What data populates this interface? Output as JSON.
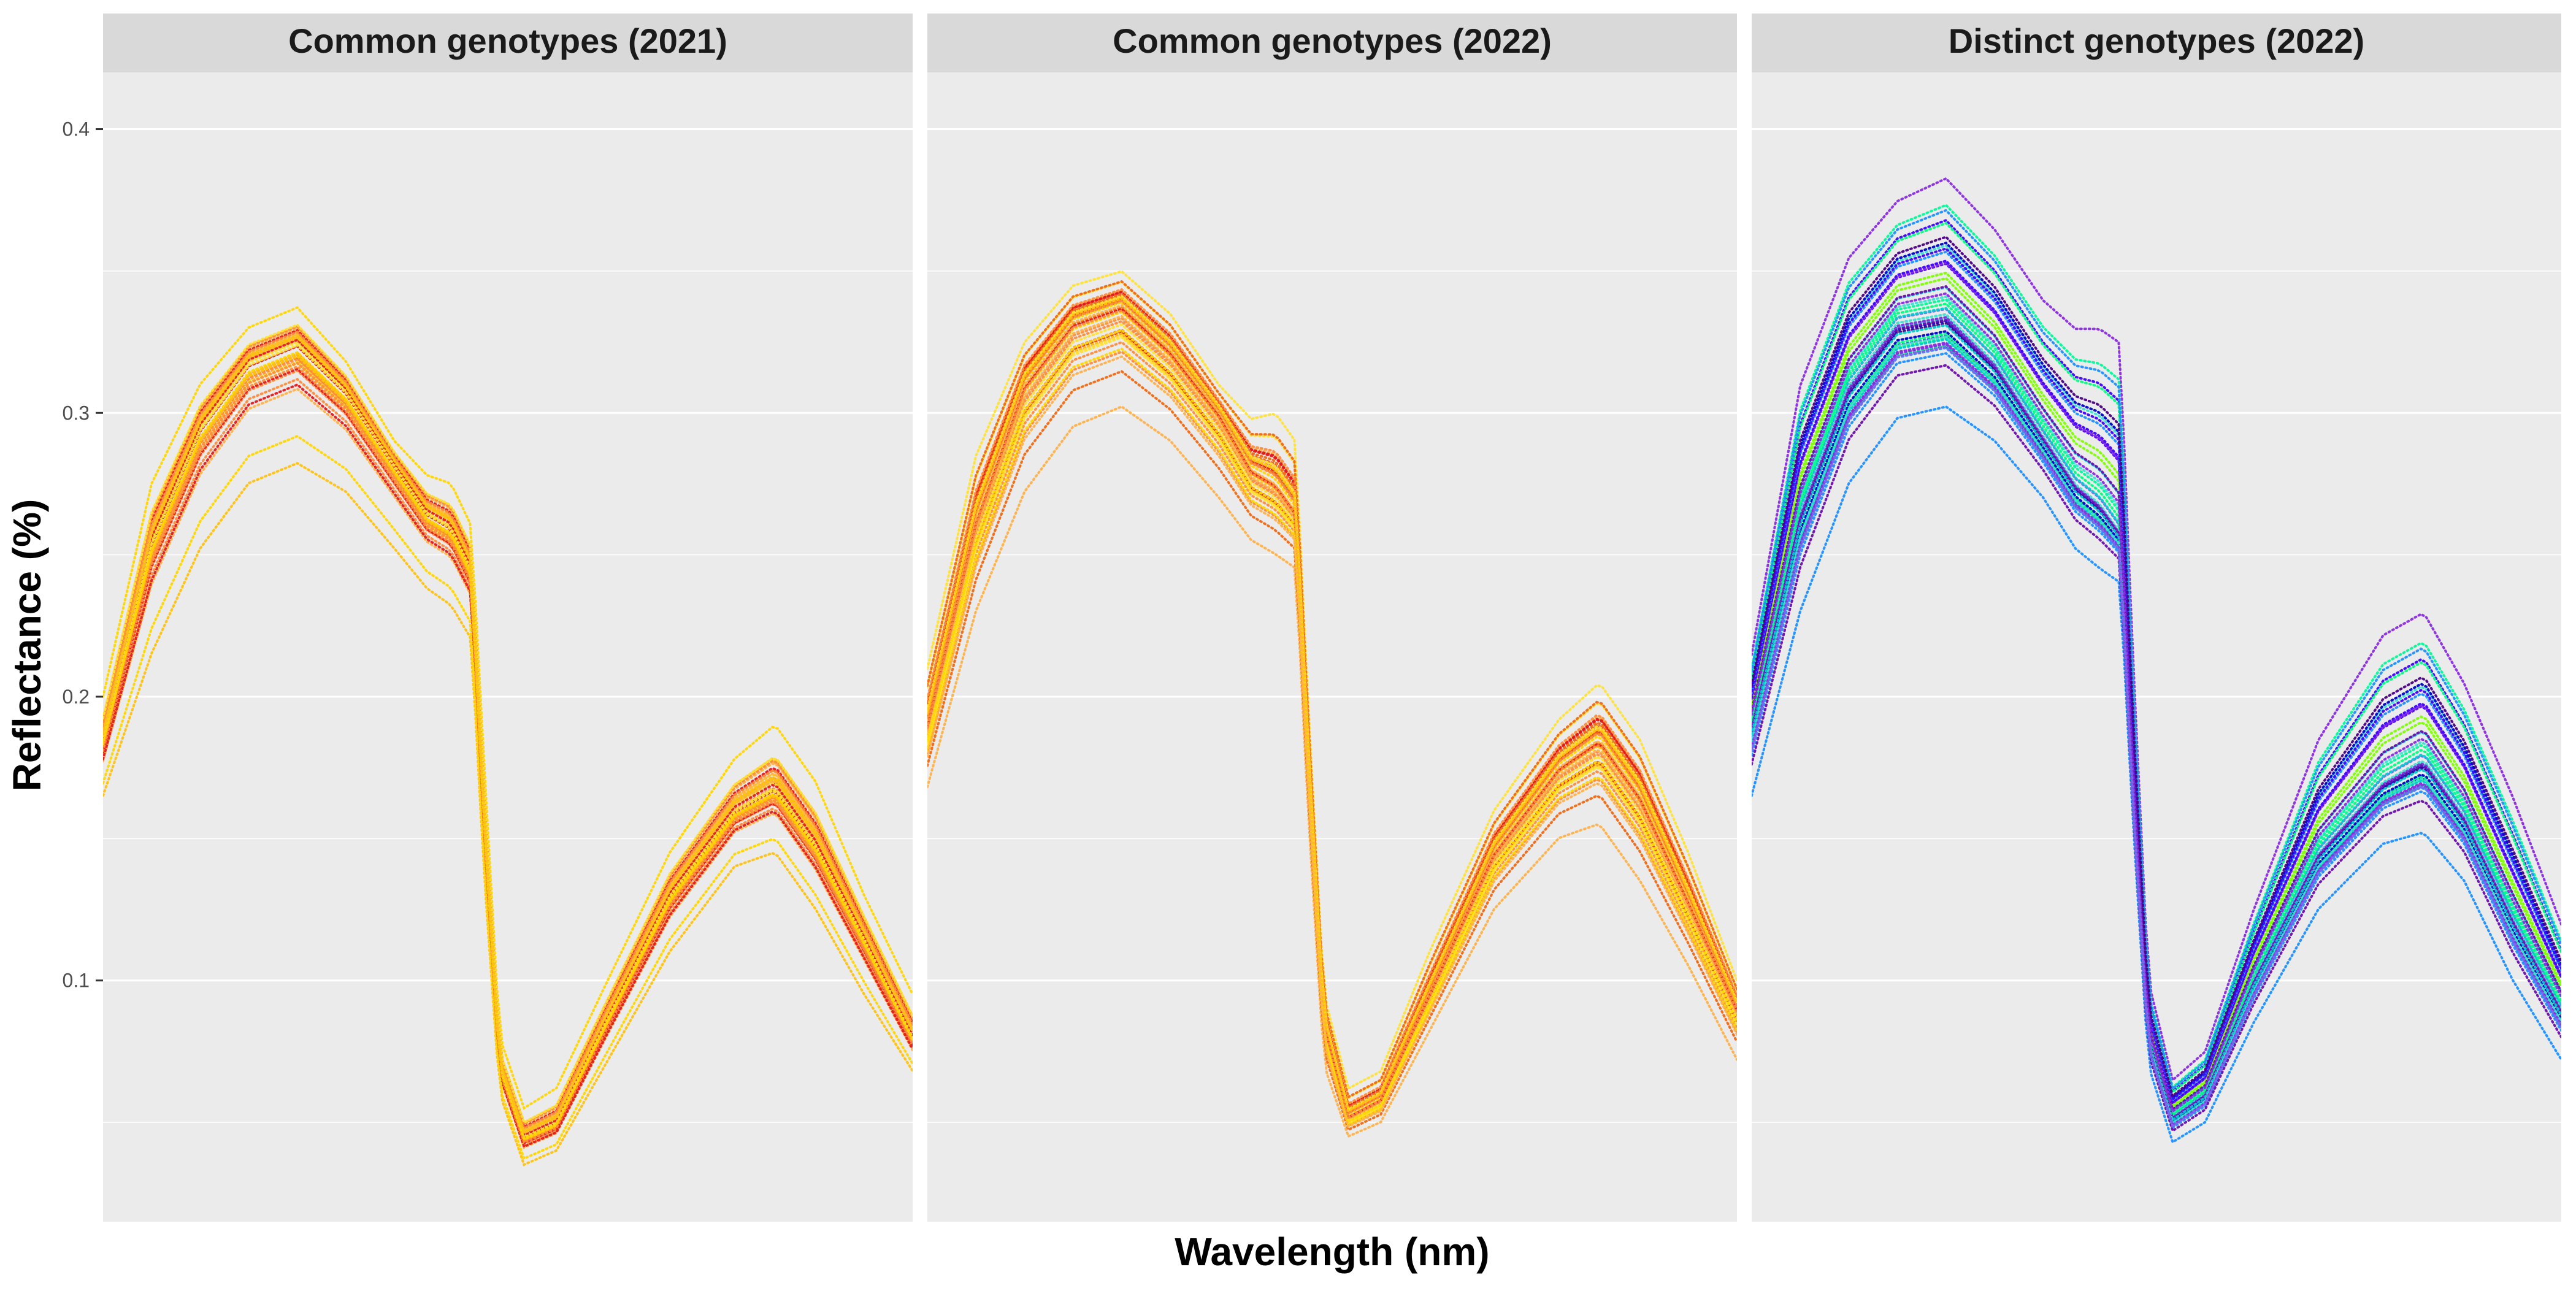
{
  "chart_data": {
    "type": "line",
    "layout": "faceted, 3 panels sharing y axis",
    "xlabel": "Wavelength (nm)",
    "ylabel": "Reflectance (%)",
    "ylim": [
      0.015,
      0.42
    ],
    "yticks": [
      0.1,
      0.2,
      0.3,
      0.4
    ],
    "ytick_labels": [
      "0.1",
      "0.2",
      "0.3",
      "0.4"
    ],
    "x_tick_labels_shown": false,
    "grid": true,
    "line_style": "dotted",
    "legend": "none",
    "panel_background": "#EBEBEB",
    "strip_background": "#D9D9D9",
    "panels": [
      {
        "title": "Common genotypes (2021)",
        "palette": [
          "#E31A1C",
          "#F16913",
          "#FD8D3C",
          "#FEB24C",
          "#FFC20E",
          "#FFD700",
          "#FFE135"
        ],
        "envelope": {
          "x": [
            0,
            0.06,
            0.12,
            0.18,
            0.24,
            0.3,
            0.36,
            0.4,
            0.43,
            0.455,
            0.47,
            0.49,
            0.52,
            0.56,
            0.62,
            0.7,
            0.78,
            0.83,
            0.88,
            0.94,
            1.0
          ],
          "y_min": [
            0.165,
            0.215,
            0.252,
            0.275,
            0.282,
            0.272,
            0.252,
            0.238,
            0.232,
            0.22,
            0.14,
            0.06,
            0.035,
            0.04,
            0.07,
            0.11,
            0.14,
            0.145,
            0.125,
            0.095,
            0.068
          ],
          "y_median": [
            0.185,
            0.255,
            0.295,
            0.318,
            0.325,
            0.308,
            0.282,
            0.265,
            0.26,
            0.245,
            0.16,
            0.07,
            0.045,
            0.05,
            0.085,
            0.13,
            0.16,
            0.168,
            0.148,
            0.115,
            0.08
          ],
          "y_max": [
            0.2,
            0.275,
            0.31,
            0.33,
            0.337,
            0.318,
            0.29,
            0.278,
            0.275,
            0.26,
            0.18,
            0.08,
            0.055,
            0.062,
            0.098,
            0.145,
            0.178,
            0.19,
            0.17,
            0.13,
            0.095
          ]
        }
      },
      {
        "title": "Common genotypes (2022)",
        "palette": [
          "#E31A1C",
          "#F16913",
          "#FD8D3C",
          "#FEB24C",
          "#FFC20E",
          "#FFD700",
          "#FFE135"
        ],
        "envelope": {
          "x": [
            0,
            0.06,
            0.12,
            0.18,
            0.24,
            0.3,
            0.36,
            0.4,
            0.43,
            0.455,
            0.47,
            0.49,
            0.52,
            0.56,
            0.62,
            0.7,
            0.78,
            0.83,
            0.88,
            0.94,
            1.0
          ],
          "y_min": [
            0.168,
            0.23,
            0.272,
            0.295,
            0.302,
            0.29,
            0.27,
            0.255,
            0.25,
            0.245,
            0.16,
            0.07,
            0.045,
            0.05,
            0.082,
            0.125,
            0.15,
            0.155,
            0.135,
            0.105,
            0.072
          ],
          "y_median": [
            0.19,
            0.262,
            0.31,
            0.332,
            0.338,
            0.322,
            0.3,
            0.28,
            0.275,
            0.265,
            0.18,
            0.085,
            0.052,
            0.058,
            0.095,
            0.145,
            0.175,
            0.185,
            0.165,
            0.128,
            0.09
          ],
          "y_max": [
            0.21,
            0.285,
            0.325,
            0.345,
            0.35,
            0.335,
            0.31,
            0.298,
            0.3,
            0.29,
            0.2,
            0.095,
            0.062,
            0.068,
            0.11,
            0.16,
            0.192,
            0.205,
            0.185,
            0.145,
            0.1
          ]
        }
      },
      {
        "title": "Distinct genotypes (2022)",
        "palette": [
          "#4B0082",
          "#3F00FF",
          "#6A0DAD",
          "#7B68EE",
          "#8A2BE2",
          "#0000CD",
          "#1E90FF",
          "#00CED1",
          "#00FA9A",
          "#00FF7F",
          "#40E0D0",
          "#7FFF00"
        ],
        "envelope": {
          "x": [
            0,
            0.06,
            0.12,
            0.18,
            0.24,
            0.3,
            0.36,
            0.4,
            0.43,
            0.455,
            0.47,
            0.49,
            0.52,
            0.56,
            0.62,
            0.7,
            0.78,
            0.83,
            0.88,
            0.94,
            1.0
          ],
          "y_min": [
            0.165,
            0.23,
            0.275,
            0.298,
            0.302,
            0.29,
            0.27,
            0.252,
            0.245,
            0.24,
            0.16,
            0.07,
            0.043,
            0.05,
            0.085,
            0.125,
            0.148,
            0.152,
            0.135,
            0.1,
            0.072
          ],
          "y_median": [
            0.19,
            0.265,
            0.31,
            0.332,
            0.335,
            0.318,
            0.292,
            0.275,
            0.268,
            0.258,
            0.17,
            0.08,
            0.052,
            0.06,
            0.1,
            0.145,
            0.17,
            0.178,
            0.158,
            0.122,
            0.09
          ],
          "y_max": [
            0.215,
            0.31,
            0.355,
            0.375,
            0.383,
            0.365,
            0.34,
            0.33,
            0.33,
            0.325,
            0.22,
            0.1,
            0.065,
            0.075,
            0.125,
            0.185,
            0.222,
            0.23,
            0.205,
            0.165,
            0.12
          ]
        }
      }
    ]
  }
}
